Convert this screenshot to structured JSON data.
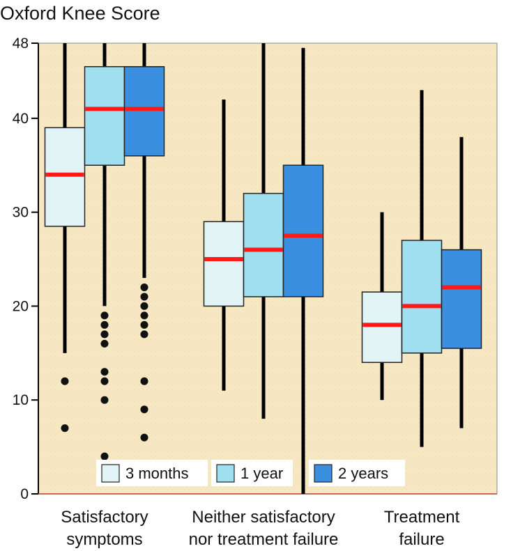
{
  "chart_data": {
    "type": "box",
    "title": "Oxford Knee Score",
    "ylim": [
      0,
      48
    ],
    "yticks": [
      0,
      10,
      20,
      30,
      40,
      48
    ],
    "categories": [
      "Satisfactory\nsymptoms",
      "Neither satisfactory\nnor treatment failure",
      "Treatment\nfailure"
    ],
    "series": [
      {
        "name": "3 months",
        "color": "#e3f4f7",
        "boxes": [
          {
            "whisker_low": 15,
            "q1": 28.5,
            "median": 34,
            "q3": 39,
            "whisker_high": 48,
            "outliers": [
              12,
              7
            ]
          },
          {
            "whisker_low": 11,
            "q1": 20,
            "median": 25,
            "q3": 29,
            "whisker_high": 42,
            "outliers": []
          },
          {
            "whisker_low": 10,
            "q1": 14,
            "median": 18,
            "q3": 21.5,
            "whisker_high": 30,
            "outliers": []
          }
        ]
      },
      {
        "name": "1 year",
        "color": "#9fdff0",
        "boxes": [
          {
            "whisker_low": 20,
            "q1": 35,
            "median": 41,
            "q3": 45.5,
            "whisker_high": 48,
            "outliers": [
              19,
              18,
              17,
              16,
              13,
              12,
              10,
              4
            ]
          },
          {
            "whisker_low": 8,
            "q1": 21,
            "median": 26,
            "q3": 32,
            "whisker_high": 48,
            "outliers": []
          },
          {
            "whisker_low": 5,
            "q1": 15,
            "median": 20,
            "q3": 27,
            "whisker_high": 43,
            "outliers": []
          }
        ]
      },
      {
        "name": "2 years",
        "color": "#3a8fe0",
        "boxes": [
          {
            "whisker_low": 23,
            "q1": 36,
            "median": 41,
            "q3": 45.5,
            "whisker_high": 48,
            "outliers": [
              22,
              21,
              20,
              19,
              18,
              17,
              12,
              9,
              6
            ]
          },
          {
            "whisker_low": 0,
            "q1": 21,
            "median": 27.5,
            "q3": 35,
            "whisker_high": 47.5,
            "outliers": []
          },
          {
            "whisker_low": 7,
            "q1": 15.5,
            "median": 22,
            "q3": 26,
            "whisker_high": 38,
            "outliers": []
          }
        ]
      }
    ],
    "legend": {
      "placement": "bottom-center"
    },
    "median_color": "#ff1a1a",
    "background_color": "#f7e8c4",
    "grid": false
  }
}
